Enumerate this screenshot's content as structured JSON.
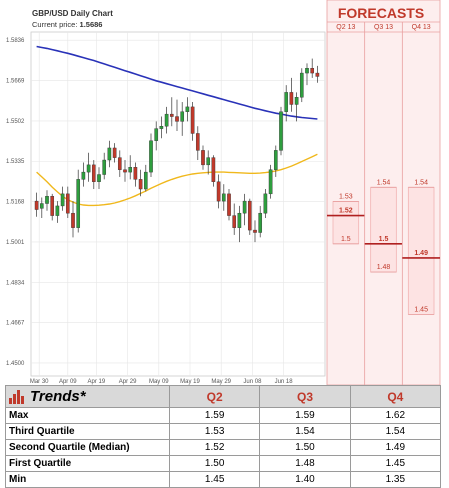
{
  "chart_data": {
    "type": "candlestick",
    "title": "GBP/USD Daily Chart",
    "current_price_label": "Current price:",
    "current_price": "1.5686",
    "y_ticks": [
      "1.5836",
      "1.5669",
      "1.5502",
      "1.5335",
      "1.5168",
      "1.5001",
      "1.4834",
      "1.4667",
      "1.4500"
    ],
    "ylim": [
      1.4446,
      1.587
    ],
    "x_ticks": [
      "Mar 30",
      "Apr 09",
      "Apr 19",
      "Apr 29",
      "May 09",
      "May 19",
      "May 29",
      "Jun 08",
      "Jun 18"
    ],
    "ohlc": [
      [
        1.517,
        1.5205,
        1.5105,
        1.5135
      ],
      [
        1.514,
        1.5185,
        1.51,
        1.516
      ],
      [
        1.516,
        1.5215,
        1.513,
        1.519
      ],
      [
        1.519,
        1.52,
        1.509,
        1.511
      ],
      [
        1.511,
        1.517,
        1.508,
        1.515
      ],
      [
        1.515,
        1.523,
        1.513,
        1.52
      ],
      [
        1.52,
        1.523,
        1.51,
        1.512
      ],
      [
        1.512,
        1.517,
        1.502,
        1.506
      ],
      [
        1.506,
        1.53,
        1.504,
        1.526
      ],
      [
        1.526,
        1.533,
        1.523,
        1.529
      ],
      [
        1.529,
        1.537,
        1.525,
        1.532
      ],
      [
        1.532,
        1.534,
        1.522,
        1.525
      ],
      [
        1.525,
        1.531,
        1.522,
        1.528
      ],
      [
        1.528,
        1.537,
        1.526,
        1.534
      ],
      [
        1.534,
        1.542,
        1.531,
        1.539
      ],
      [
        1.539,
        1.541,
        1.533,
        1.535
      ],
      [
        1.535,
        1.538,
        1.527,
        1.53
      ],
      [
        1.53,
        1.534,
        1.525,
        1.529
      ],
      [
        1.529,
        1.536,
        1.526,
        1.531
      ],
      [
        1.531,
        1.533,
        1.523,
        1.526
      ],
      [
        1.526,
        1.53,
        1.519,
        1.522
      ],
      [
        1.522,
        1.532,
        1.521,
        1.529
      ],
      [
        1.529,
        1.545,
        1.527,
        1.542
      ],
      [
        1.542,
        1.55,
        1.538,
        1.547
      ],
      [
        1.547,
        1.552,
        1.543,
        1.548
      ],
      [
        1.548,
        1.556,
        1.545,
        1.553
      ],
      [
        1.553,
        1.56,
        1.548,
        1.552
      ],
      [
        1.552,
        1.559,
        1.546,
        1.55
      ],
      [
        1.55,
        1.558,
        1.544,
        1.554
      ],
      [
        1.554,
        1.56,
        1.55,
        1.556
      ],
      [
        1.556,
        1.558,
        1.542,
        1.545
      ],
      [
        1.545,
        1.548,
        1.534,
        1.538
      ],
      [
        1.538,
        1.54,
        1.53,
        1.532
      ],
      [
        1.532,
        1.538,
        1.528,
        1.535
      ],
      [
        1.535,
        1.536,
        1.523,
        1.525
      ],
      [
        1.525,
        1.528,
        1.514,
        1.517
      ],
      [
        1.517,
        1.524,
        1.513,
        1.52
      ],
      [
        1.52,
        1.522,
        1.509,
        1.511
      ],
      [
        1.511,
        1.516,
        1.503,
        1.506
      ],
      [
        1.506,
        1.515,
        1.5,
        1.512
      ],
      [
        1.512,
        1.52,
        1.507,
        1.517
      ],
      [
        1.517,
        1.518,
        1.503,
        1.505
      ],
      [
        1.505,
        1.509,
        1.5,
        1.504
      ],
      [
        1.504,
        1.515,
        1.502,
        1.512
      ],
      [
        1.512,
        1.522,
        1.51,
        1.52
      ],
      [
        1.52,
        1.532,
        1.518,
        1.53
      ],
      [
        1.53,
        1.54,
        1.527,
        1.538
      ],
      [
        1.538,
        1.556,
        1.536,
        1.554
      ],
      [
        1.554,
        1.565,
        1.55,
        1.562
      ],
      [
        1.562,
        1.568,
        1.554,
        1.557
      ],
      [
        1.557,
        1.562,
        1.55,
        1.56
      ],
      [
        1.56,
        1.572,
        1.558,
        1.57
      ],
      [
        1.57,
        1.574,
        1.565,
        1.572
      ],
      [
        1.572,
        1.576,
        1.568,
        1.57
      ],
      [
        1.57,
        1.573,
        1.566,
        1.5686
      ]
    ],
    "ma_long": [
      1.581,
      1.5806,
      1.5802,
      1.5797,
      1.5792,
      1.5787,
      1.5782,
      1.5776,
      1.577,
      1.5764,
      1.5758,
      1.5752,
      1.5745,
      1.5738,
      1.5731,
      1.5724,
      1.5717,
      1.571,
      1.5703,
      1.5696,
      1.5689,
      1.5682,
      1.5675,
      1.5668,
      1.5662,
      1.5656,
      1.565,
      1.5644,
      1.5638,
      1.5632,
      1.5626,
      1.562,
      1.5614,
      1.5608,
      1.5602,
      1.5596,
      1.559,
      1.5584,
      1.5578,
      1.5572,
      1.5566,
      1.556,
      1.5554,
      1.5549,
      1.5544,
      1.5539,
      1.5534,
      1.553,
      1.5526,
      1.5522,
      1.5519,
      1.5516,
      1.5514,
      1.5512,
      1.551
    ],
    "ma_short": [
      1.529,
      1.527,
      1.525,
      1.5228,
      1.5208,
      1.519,
      1.5176,
      1.5166,
      1.5158,
      1.5154,
      1.5152,
      1.5152,
      1.5153,
      1.5155,
      1.5158,
      1.5162,
      1.5168,
      1.5175,
      1.5183,
      1.5192,
      1.5202,
      1.5212,
      1.5223,
      1.5233,
      1.5243,
      1.5252,
      1.526,
      1.5267,
      1.5273,
      1.5278,
      1.5282,
      1.5285,
      1.5287,
      1.5289,
      1.529,
      1.529,
      1.529,
      1.5289,
      1.5288,
      1.5287,
      1.5286,
      1.5285,
      1.5285,
      1.5286,
      1.5288,
      1.5291,
      1.5295,
      1.53,
      1.5307,
      1.5315,
      1.5324,
      1.5334,
      1.5344,
      1.5354,
      1.5364
    ],
    "colors": {
      "up": "#2e9e3e",
      "down": "#c0392b",
      "ma_long": "#2932b8",
      "ma_short": "#f0b81c",
      "forecast": "#c0392b"
    },
    "forecast": {
      "title": "FORECASTS",
      "ylim": [
        1.4,
        1.65
      ],
      "columns": [
        {
          "label": "Q2 13",
          "median": 1.52,
          "levels": [
            {
              "value": 1.53,
              "label": "1.53"
            },
            {
              "value": 1.52,
              "label": "1.52",
              "median": true
            },
            {
              "value": 1.5,
              "label": "1.5"
            }
          ]
        },
        {
          "label": "Q3 13",
          "median": 1.5,
          "levels": [
            {
              "value": 1.54,
              "label": "1.54"
            },
            {
              "value": 1.5,
              "label": "1.5",
              "median": true
            },
            {
              "value": 1.48,
              "label": "1.48"
            }
          ]
        },
        {
          "label": "Q4 13",
          "median": 1.49,
          "levels": [
            {
              "value": 1.54,
              "label": "1.54"
            },
            {
              "value": 1.49,
              "label": "1.49",
              "median": true
            },
            {
              "value": 1.45,
              "label": "1.45"
            }
          ]
        }
      ]
    }
  },
  "trends": {
    "title": "Trends*",
    "columns": [
      "Q2",
      "Q3",
      "Q4"
    ],
    "rows": [
      {
        "label": "Max",
        "values": [
          "1.59",
          "1.59",
          "1.62"
        ]
      },
      {
        "label": "Third Quartile",
        "values": [
          "1.53",
          "1.54",
          "1.54"
        ]
      },
      {
        "label": "Second Quartile (Median)",
        "values": [
          "1.52",
          "1.50",
          "1.49"
        ]
      },
      {
        "label": "First Quartile",
        "values": [
          "1.50",
          "1.48",
          "1.45"
        ]
      },
      {
        "label": "Min",
        "values": [
          "1.45",
          "1.40",
          "1.35"
        ]
      }
    ]
  }
}
